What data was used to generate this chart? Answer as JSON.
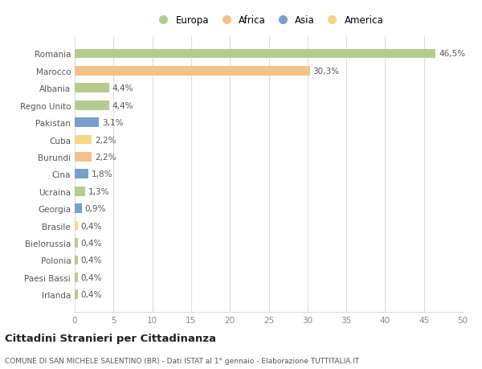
{
  "categories": [
    "Romania",
    "Marocco",
    "Albania",
    "Regno Unito",
    "Pakistan",
    "Cuba",
    "Burundi",
    "Cina",
    "Ucraina",
    "Georgia",
    "Brasile",
    "Bielorussia",
    "Polonia",
    "Paesi Bassi",
    "Irlanda"
  ],
  "values": [
    46.5,
    30.3,
    4.4,
    4.4,
    3.1,
    2.2,
    2.2,
    1.8,
    1.3,
    0.9,
    0.4,
    0.4,
    0.4,
    0.4,
    0.4
  ],
  "labels": [
    "46,5%",
    "30,3%",
    "4,4%",
    "4,4%",
    "3,1%",
    "2,2%",
    "2,2%",
    "1,8%",
    "1,3%",
    "0,9%",
    "0,4%",
    "0,4%",
    "0,4%",
    "0,4%",
    "0,4%"
  ],
  "colors": [
    "#b5cc8e",
    "#f5c18a",
    "#b5cc8e",
    "#b5cc8e",
    "#7b9dcc",
    "#f5d882",
    "#f5c18a",
    "#7b9dcc",
    "#b5cc8e",
    "#7b9dcc",
    "#f5d882",
    "#b5cc8e",
    "#b5cc8e",
    "#b5cc8e",
    "#b5cc8e"
  ],
  "legend_labels": [
    "Europa",
    "Africa",
    "Asia",
    "America"
  ],
  "legend_colors": [
    "#b5cc8e",
    "#f5c18a",
    "#7b9dcc",
    "#f5d882"
  ],
  "xlim": [
    0,
    50
  ],
  "xticks": [
    0,
    5,
    10,
    15,
    20,
    25,
    30,
    35,
    40,
    45,
    50
  ],
  "title": "Cittadini Stranieri per Cittadinanza",
  "subtitle": "COMUNE DI SAN MICHELE SALENTINO (BR) - Dati ISTAT al 1° gennaio - Elaborazione TUTTITALIA.IT",
  "background_color": "#ffffff",
  "plot_bg_color": "#ffffff",
  "grid_color": "#dddddd",
  "label_color": "#555555",
  "tick_color": "#888888"
}
